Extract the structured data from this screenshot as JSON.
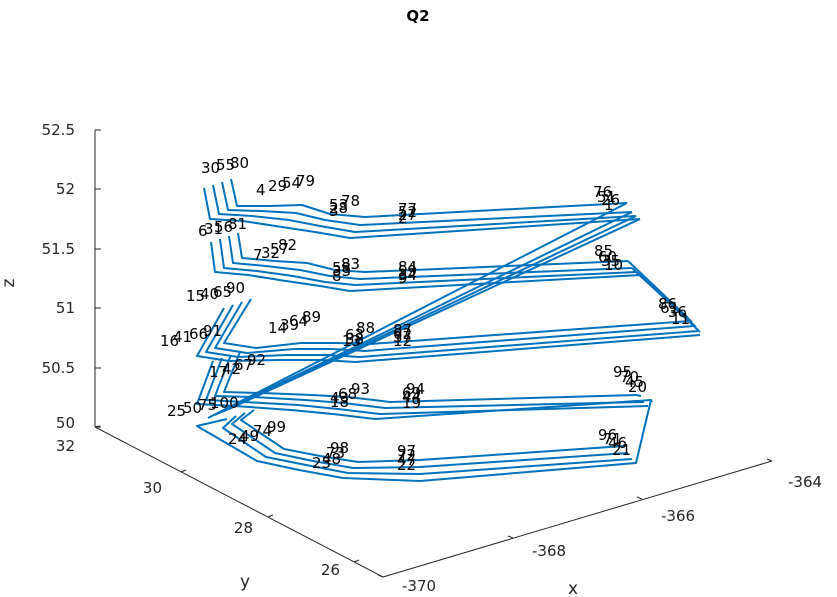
{
  "chart_data": {
    "type": "line3d",
    "title": "Q2",
    "xlabel": "x",
    "ylabel": "y",
    "zlabel": "z",
    "x_ticks": [
      "-370",
      "-368",
      "-366",
      "-364"
    ],
    "y_ticks": [
      "26",
      "28",
      "30",
      "32"
    ],
    "z_ticks": [
      "50",
      "50.5",
      "51",
      "51.5",
      "52",
      "52.5"
    ],
    "line_color": "#0072BD",
    "grid": false,
    "point_labels": [
      {
        "text": "30",
        "x": -370.2,
        "y": 31.0,
        "z": 52.0
      },
      {
        "text": "55",
        "x": -370.1,
        "y": 31.2,
        "z": 52.0
      },
      {
        "text": "80",
        "x": -369.9,
        "y": 31.4,
        "z": 52.0
      },
      {
        "text": "4",
        "x": -369.4,
        "y": 30.9,
        "z": 52.0
      },
      {
        "text": "29",
        "x": -369.3,
        "y": 31.1,
        "z": 52.0
      },
      {
        "text": "54",
        "x": -369.2,
        "y": 31.3,
        "z": 52.0
      },
      {
        "text": "79",
        "x": -369.1,
        "y": 31.5,
        "z": 52.0
      },
      {
        "text": "78",
        "x": -368.3,
        "y": 31.4,
        "z": 52.0
      },
      {
        "text": "53",
        "x": -368.4,
        "y": 31.2,
        "z": 52.0
      },
      {
        "text": "28",
        "x": -368.5,
        "y": 31.0,
        "z": 52.0
      },
      {
        "text": "3",
        "x": -368.5,
        "y": 30.8,
        "z": 52.0
      },
      {
        "text": "77",
        "x": -367.5,
        "y": 31.2,
        "z": 52.0
      },
      {
        "text": "52",
        "x": -367.6,
        "y": 31.0,
        "z": 52.0
      },
      {
        "text": "27",
        "x": -367.6,
        "y": 30.8,
        "z": 52.0
      },
      {
        "text": "2",
        "x": -367.6,
        "y": 30.6,
        "z": 52.0
      },
      {
        "text": "76",
        "x": -364.7,
        "y": 30.5,
        "z": 52.0
      },
      {
        "text": "51",
        "x": -364.8,
        "y": 30.3,
        "z": 52.0
      },
      {
        "text": "26",
        "x": -364.9,
        "y": 30.1,
        "z": 52.0
      },
      {
        "text": "1",
        "x": -364.9,
        "y": 29.9,
        "z": 52.0
      },
      {
        "text": "6",
        "x": -370.0,
        "y": 30.6,
        "z": 51.5
      },
      {
        "text": "31",
        "x": -369.9,
        "y": 30.8,
        "z": 51.5
      },
      {
        "text": "56",
        "x": -369.7,
        "y": 31.0,
        "z": 51.5
      },
      {
        "text": "81",
        "x": -369.5,
        "y": 31.2,
        "z": 51.5
      },
      {
        "text": "7",
        "x": -369.2,
        "y": 30.6,
        "z": 51.5
      },
      {
        "text": "32",
        "x": -369.1,
        "y": 30.8,
        "z": 51.5
      },
      {
        "text": "57",
        "x": -369.0,
        "y": 31.0,
        "z": 51.5
      },
      {
        "text": "82",
        "x": -368.8,
        "y": 31.2,
        "z": 51.5
      },
      {
        "text": "83",
        "x": -368.1,
        "y": 31.1,
        "z": 51.5
      },
      {
        "text": "58",
        "x": -368.2,
        "y": 30.9,
        "z": 51.5
      },
      {
        "text": "33",
        "x": -368.3,
        "y": 30.7,
        "z": 51.5
      },
      {
        "text": "8",
        "x": -368.3,
        "y": 30.5,
        "z": 51.5
      },
      {
        "text": "84",
        "x": -367.3,
        "y": 31.0,
        "z": 51.5
      },
      {
        "text": "59",
        "x": -367.4,
        "y": 30.8,
        "z": 51.5
      },
      {
        "text": "34",
        "x": -367.4,
        "y": 30.6,
        "z": 51.5
      },
      {
        "text": "9",
        "x": -367.4,
        "y": 30.4,
        "z": 51.5
      },
      {
        "text": "85",
        "x": -364.6,
        "y": 30.2,
        "z": 51.5
      },
      {
        "text": "60",
        "x": -364.7,
        "y": 30.0,
        "z": 51.5
      },
      {
        "text": "35",
        "x": -364.7,
        "y": 29.8,
        "z": 51.5
      },
      {
        "text": "10",
        "x": -364.7,
        "y": 29.6,
        "z": 51.5
      },
      {
        "text": "15",
        "x": -369.8,
        "y": 30.3,
        "z": 51.0
      },
      {
        "text": "40",
        "x": -369.6,
        "y": 30.5,
        "z": 51.0
      },
      {
        "text": "65",
        "x": -369.5,
        "y": 30.7,
        "z": 51.0
      },
      {
        "text": "90",
        "x": -369.3,
        "y": 30.9,
        "z": 51.0
      },
      {
        "text": "86",
        "x": -364.1,
        "y": 29.7,
        "z": 51.0
      },
      {
        "text": "61",
        "x": -364.1,
        "y": 29.5,
        "z": 51.0
      },
      {
        "text": "36",
        "x": -364.1,
        "y": 29.3,
        "z": 51.0
      },
      {
        "text": "11",
        "x": -364.1,
        "y": 29.1,
        "z": 51.0
      },
      {
        "text": "16",
        "x": -370.2,
        "y": 29.6,
        "z": 50.7
      },
      {
        "text": "41",
        "x": -370.0,
        "y": 29.8,
        "z": 50.7
      },
      {
        "text": "66",
        "x": -369.9,
        "y": 30.0,
        "z": 50.7
      },
      {
        "text": "91",
        "x": -369.7,
        "y": 30.2,
        "z": 50.7
      },
      {
        "text": "14",
        "x": -368.9,
        "y": 30.1,
        "z": 51.0
      },
      {
        "text": "39",
        "x": -368.8,
        "y": 30.3,
        "z": 51.0
      },
      {
        "text": "64",
        "x": -368.7,
        "y": 30.5,
        "z": 51.0
      },
      {
        "text": "89",
        "x": -368.6,
        "y": 30.7,
        "z": 51.0
      },
      {
        "text": "13",
        "x": -368.1,
        "y": 29.9,
        "z": 51.0
      },
      {
        "text": "38",
        "x": -368.1,
        "y": 30.1,
        "z": 51.0
      },
      {
        "text": "63",
        "x": -368.0,
        "y": 30.3,
        "z": 51.0
      },
      {
        "text": "88",
        "x": -367.9,
        "y": 30.5,
        "z": 51.0
      },
      {
        "text": "87",
        "x": -367.1,
        "y": 30.3,
        "z": 51.0
      },
      {
        "text": "62",
        "x": -367.2,
        "y": 30.1,
        "z": 51.0
      },
      {
        "text": "37",
        "x": -367.2,
        "y": 29.9,
        "z": 51.0
      },
      {
        "text": "12",
        "x": -367.2,
        "y": 29.7,
        "z": 51.0
      },
      {
        "text": "17",
        "x": -369.3,
        "y": 29.7,
        "z": 50.5
      },
      {
        "text": "42",
        "x": -369.2,
        "y": 29.9,
        "z": 50.5
      },
      {
        "text": "67",
        "x": -369.1,
        "y": 30.1,
        "z": 50.5
      },
      {
        "text": "92",
        "x": -369.0,
        "y": 30.3,
        "z": 50.5
      },
      {
        "text": "93",
        "x": -367.9,
        "y": 29.9,
        "z": 50.5
      },
      {
        "text": "68",
        "x": -368.0,
        "y": 29.7,
        "z": 50.5
      },
      {
        "text": "43",
        "x": -368.1,
        "y": 29.5,
        "z": 50.5
      },
      {
        "text": "18",
        "x": -368.1,
        "y": 29.3,
        "z": 50.5
      },
      {
        "text": "94",
        "x": -366.9,
        "y": 29.6,
        "z": 50.5
      },
      {
        "text": "69",
        "x": -367.0,
        "y": 29.4,
        "z": 50.5
      },
      {
        "text": "44",
        "x": -367.0,
        "y": 29.2,
        "z": 50.5
      },
      {
        "text": "19",
        "x": -367.0,
        "y": 29.0,
        "z": 50.5
      },
      {
        "text": "95",
        "x": -364.5,
        "y": 28.5,
        "z": 50.5
      },
      {
        "text": "70",
        "x": -364.5,
        "y": 28.3,
        "z": 50.5
      },
      {
        "text": "45",
        "x": -364.5,
        "y": 28.1,
        "z": 50.5
      },
      {
        "text": "20",
        "x": -364.5,
        "y": 27.9,
        "z": 50.5
      },
      {
        "text": "25",
        "x": -369.7,
        "y": 28.5,
        "z": 50.2
      },
      {
        "text": "50",
        "x": -369.5,
        "y": 28.7,
        "z": 50.2
      },
      {
        "text": "75",
        "x": -369.4,
        "y": 28.9,
        "z": 50.2
      },
      {
        "text": "100",
        "x": -369.2,
        "y": 29.1,
        "z": 50.2
      },
      {
        "text": "24",
        "x": -369.2,
        "y": 28.2,
        "z": 50.1
      },
      {
        "text": "49",
        "x": -369.1,
        "y": 28.4,
        "z": 50.1
      },
      {
        "text": "74",
        "x": -369.0,
        "y": 28.6,
        "z": 50.1
      },
      {
        "text": "99",
        "x": -368.9,
        "y": 28.8,
        "z": 50.1
      },
      {
        "text": "23",
        "x": -367.8,
        "y": 28.0,
        "z": 50.0
      },
      {
        "text": "48",
        "x": -367.8,
        "y": 28.2,
        "z": 50.0
      },
      {
        "text": "73",
        "x": -367.7,
        "y": 28.4,
        "z": 50.0
      },
      {
        "text": "98",
        "x": -367.6,
        "y": 28.6,
        "z": 50.0
      },
      {
        "text": "97",
        "x": -366.7,
        "y": 28.2,
        "z": 50.0
      },
      {
        "text": "72",
        "x": -366.7,
        "y": 28.0,
        "z": 50.0
      },
      {
        "text": "47",
        "x": -366.7,
        "y": 27.8,
        "z": 50.0
      },
      {
        "text": "22",
        "x": -366.7,
        "y": 27.6,
        "z": 50.0
      },
      {
        "text": "96",
        "x": -364.4,
        "y": 27.5,
        "z": 50.0
      },
      {
        "text": "71",
        "x": -364.4,
        "y": 27.3,
        "z": 50.0
      },
      {
        "text": "46",
        "x": -364.4,
        "y": 27.1,
        "z": 50.0
      },
      {
        "text": "21",
        "x": -364.4,
        "y": 26.9,
        "z": 50.0
      }
    ]
  }
}
